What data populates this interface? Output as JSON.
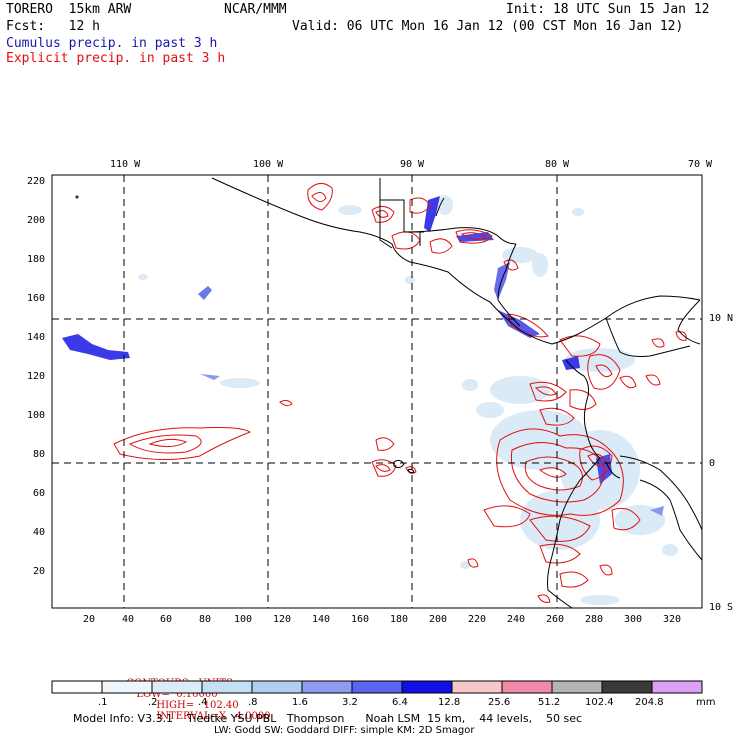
{
  "header": {
    "model": "TORERO  15km ARW",
    "org": "NCAR/MMM",
    "init": "Init: 18 UTC Sun 15 Jan 12",
    "fcst": "Fcst:   12 h",
    "valid": "Valid: 06 UTC Mon 16 Jan 12 (00 CST Mon 16 Jan 12)",
    "cumulus_label": "Cumulus precip. in past 3 h",
    "explicit_label": "Explicit precip. in past 3 h"
  },
  "map": {
    "lon_labels": [
      "110 W",
      "100 W",
      "90 W",
      "80 W",
      "70 W"
    ],
    "lat_labels": [
      "10 N",
      "0",
      "10 S"
    ],
    "y_ticks": [
      "220",
      "200",
      "180",
      "160",
      "140",
      "120",
      "100",
      "80",
      "60",
      "40",
      "20"
    ],
    "x_ticks": [
      "20",
      "40",
      "60",
      "80",
      "100",
      "120",
      "140",
      "160",
      "180",
      "200",
      "220",
      "240",
      "260",
      "280",
      "300",
      "320"
    ]
  },
  "contours": {
    "units": "CONTOURS:  UNITS=mm",
    "low": "LOW=  0.10000",
    "high": "HIGH=   102.40",
    "interval": "INTERVAL=X   4.0000"
  },
  "legend": {
    "labels": [
      ".1",
      ".2",
      ".4",
      ".8",
      "1.6",
      "3.2",
      "6.4",
      "12.8",
      "25.6",
      "51.2",
      "102.4",
      "204.8"
    ],
    "unit": "mm",
    "colors": [
      "#ffffff",
      "#eef6fb",
      "#dcecf7",
      "#c6e0f3",
      "#b0cff0",
      "#8f9cf2",
      "#5c63ee",
      "#1010e6",
      "#f6c8c8",
      "#f08aa8",
      "#b4b4b4",
      "#3a3a3a",
      "#dca0f4"
    ]
  },
  "footer": {
    "line1": "Model Info: V3.3.1    Tiedtke YSU PBL   Thompson      Noah LSM  15 km,    44 levels,    50 sec",
    "line2": "LW: Godd SW: Goddard DIFF: simple KM: 2D Smagor"
  }
}
